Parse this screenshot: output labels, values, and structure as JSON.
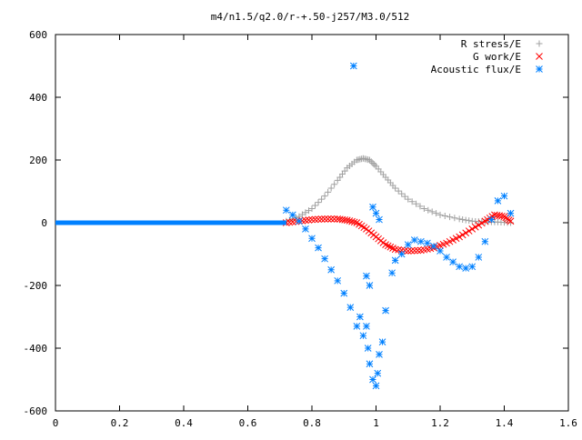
{
  "chart_data": {
    "type": "scatter",
    "title": "m4/n1.5/q2.0/r-+.50-j257/M3.0/512",
    "xlim": [
      0,
      1.6
    ],
    "ylim": [
      -600,
      600
    ],
    "x_ticks": [
      "0",
      "0.2",
      "0.4",
      "0.6",
      "0.8",
      "1",
      "1.2",
      "1.4",
      "1.6"
    ],
    "y_ticks": [
      "600",
      "400",
      "200",
      "0",
      "-200",
      "-400",
      "-600"
    ],
    "legend_position": "top-right",
    "grid": false,
    "series": [
      {
        "name": "R stress/E",
        "marker": "plus",
        "color": "#a0a0a0",
        "points": [
          [
            0.72,
            5
          ],
          [
            0.76,
            20
          ],
          [
            0.8,
            45
          ],
          [
            0.84,
            85
          ],
          [
            0.88,
            135
          ],
          [
            0.91,
            175
          ],
          [
            0.94,
            200
          ],
          [
            0.96,
            205
          ],
          [
            0.98,
            200
          ],
          [
            1.0,
            180
          ],
          [
            1.03,
            145
          ],
          [
            1.06,
            110
          ],
          [
            1.1,
            75
          ],
          [
            1.15,
            45
          ],
          [
            1.2,
            25
          ],
          [
            1.26,
            12
          ],
          [
            1.3,
            5
          ],
          [
            1.34,
            3
          ],
          [
            1.38,
            2
          ],
          [
            1.42,
            0
          ]
        ]
      },
      {
        "name": "G work/E",
        "marker": "cross",
        "color": "#ff0000",
        "points": [
          [
            0.72,
            0
          ],
          [
            0.76,
            5
          ],
          [
            0.8,
            10
          ],
          [
            0.84,
            12
          ],
          [
            0.88,
            12
          ],
          [
            0.91,
            8
          ],
          [
            0.94,
            0
          ],
          [
            0.97,
            -20
          ],
          [
            1.0,
            -45
          ],
          [
            1.03,
            -70
          ],
          [
            1.06,
            -85
          ],
          [
            1.1,
            -90
          ],
          [
            1.14,
            -88
          ],
          [
            1.18,
            -80
          ],
          [
            1.22,
            -65
          ],
          [
            1.26,
            -45
          ],
          [
            1.3,
            -20
          ],
          [
            1.34,
            5
          ],
          [
            1.37,
            25
          ],
          [
            1.4,
            20
          ],
          [
            1.42,
            5
          ]
        ]
      },
      {
        "name": "Acoustic flux/E",
        "marker": "asterisk",
        "color": "#0080ff",
        "points": [
          [
            0.72,
            40
          ],
          [
            0.74,
            25
          ],
          [
            0.76,
            5
          ],
          [
            0.78,
            -20
          ],
          [
            0.8,
            -50
          ],
          [
            0.82,
            -80
          ],
          [
            0.84,
            -115
          ],
          [
            0.86,
            -150
          ],
          [
            0.88,
            -185
          ],
          [
            0.9,
            -225
          ],
          [
            0.92,
            -270
          ],
          [
            0.93,
            500
          ],
          [
            0.94,
            -330
          ],
          [
            0.95,
            -300
          ],
          [
            0.96,
            -360
          ],
          [
            0.97,
            -330
          ],
          [
            0.975,
            -400
          ],
          [
            0.98,
            -450
          ],
          [
            0.99,
            -500
          ],
          [
            1.0,
            -520
          ],
          [
            1.005,
            -480
          ],
          [
            1.01,
            -420
          ],
          [
            1.02,
            -380
          ],
          [
            0.99,
            50
          ],
          [
            1.0,
            30
          ],
          [
            1.01,
            10
          ],
          [
            0.97,
            -170
          ],
          [
            0.98,
            -200
          ],
          [
            1.03,
            -280
          ],
          [
            1.05,
            -160
          ],
          [
            1.06,
            -120
          ],
          [
            1.08,
            -100
          ],
          [
            1.1,
            -70
          ],
          [
            1.12,
            -55
          ],
          [
            1.14,
            -60
          ],
          [
            1.16,
            -65
          ],
          [
            1.18,
            -75
          ],
          [
            1.2,
            -90
          ],
          [
            1.22,
            -110
          ],
          [
            1.24,
            -125
          ],
          [
            1.26,
            -140
          ],
          [
            1.28,
            -145
          ],
          [
            1.3,
            -140
          ],
          [
            1.32,
            -110
          ],
          [
            1.34,
            -60
          ],
          [
            1.36,
            10
          ],
          [
            1.38,
            70
          ],
          [
            1.4,
            85
          ],
          [
            1.42,
            30
          ]
        ]
      },
      {
        "name": "",
        "marker": "baseline",
        "color": "#0080ff",
        "x": [
          0,
          0.72
        ],
        "y": [
          0,
          0
        ]
      }
    ]
  }
}
